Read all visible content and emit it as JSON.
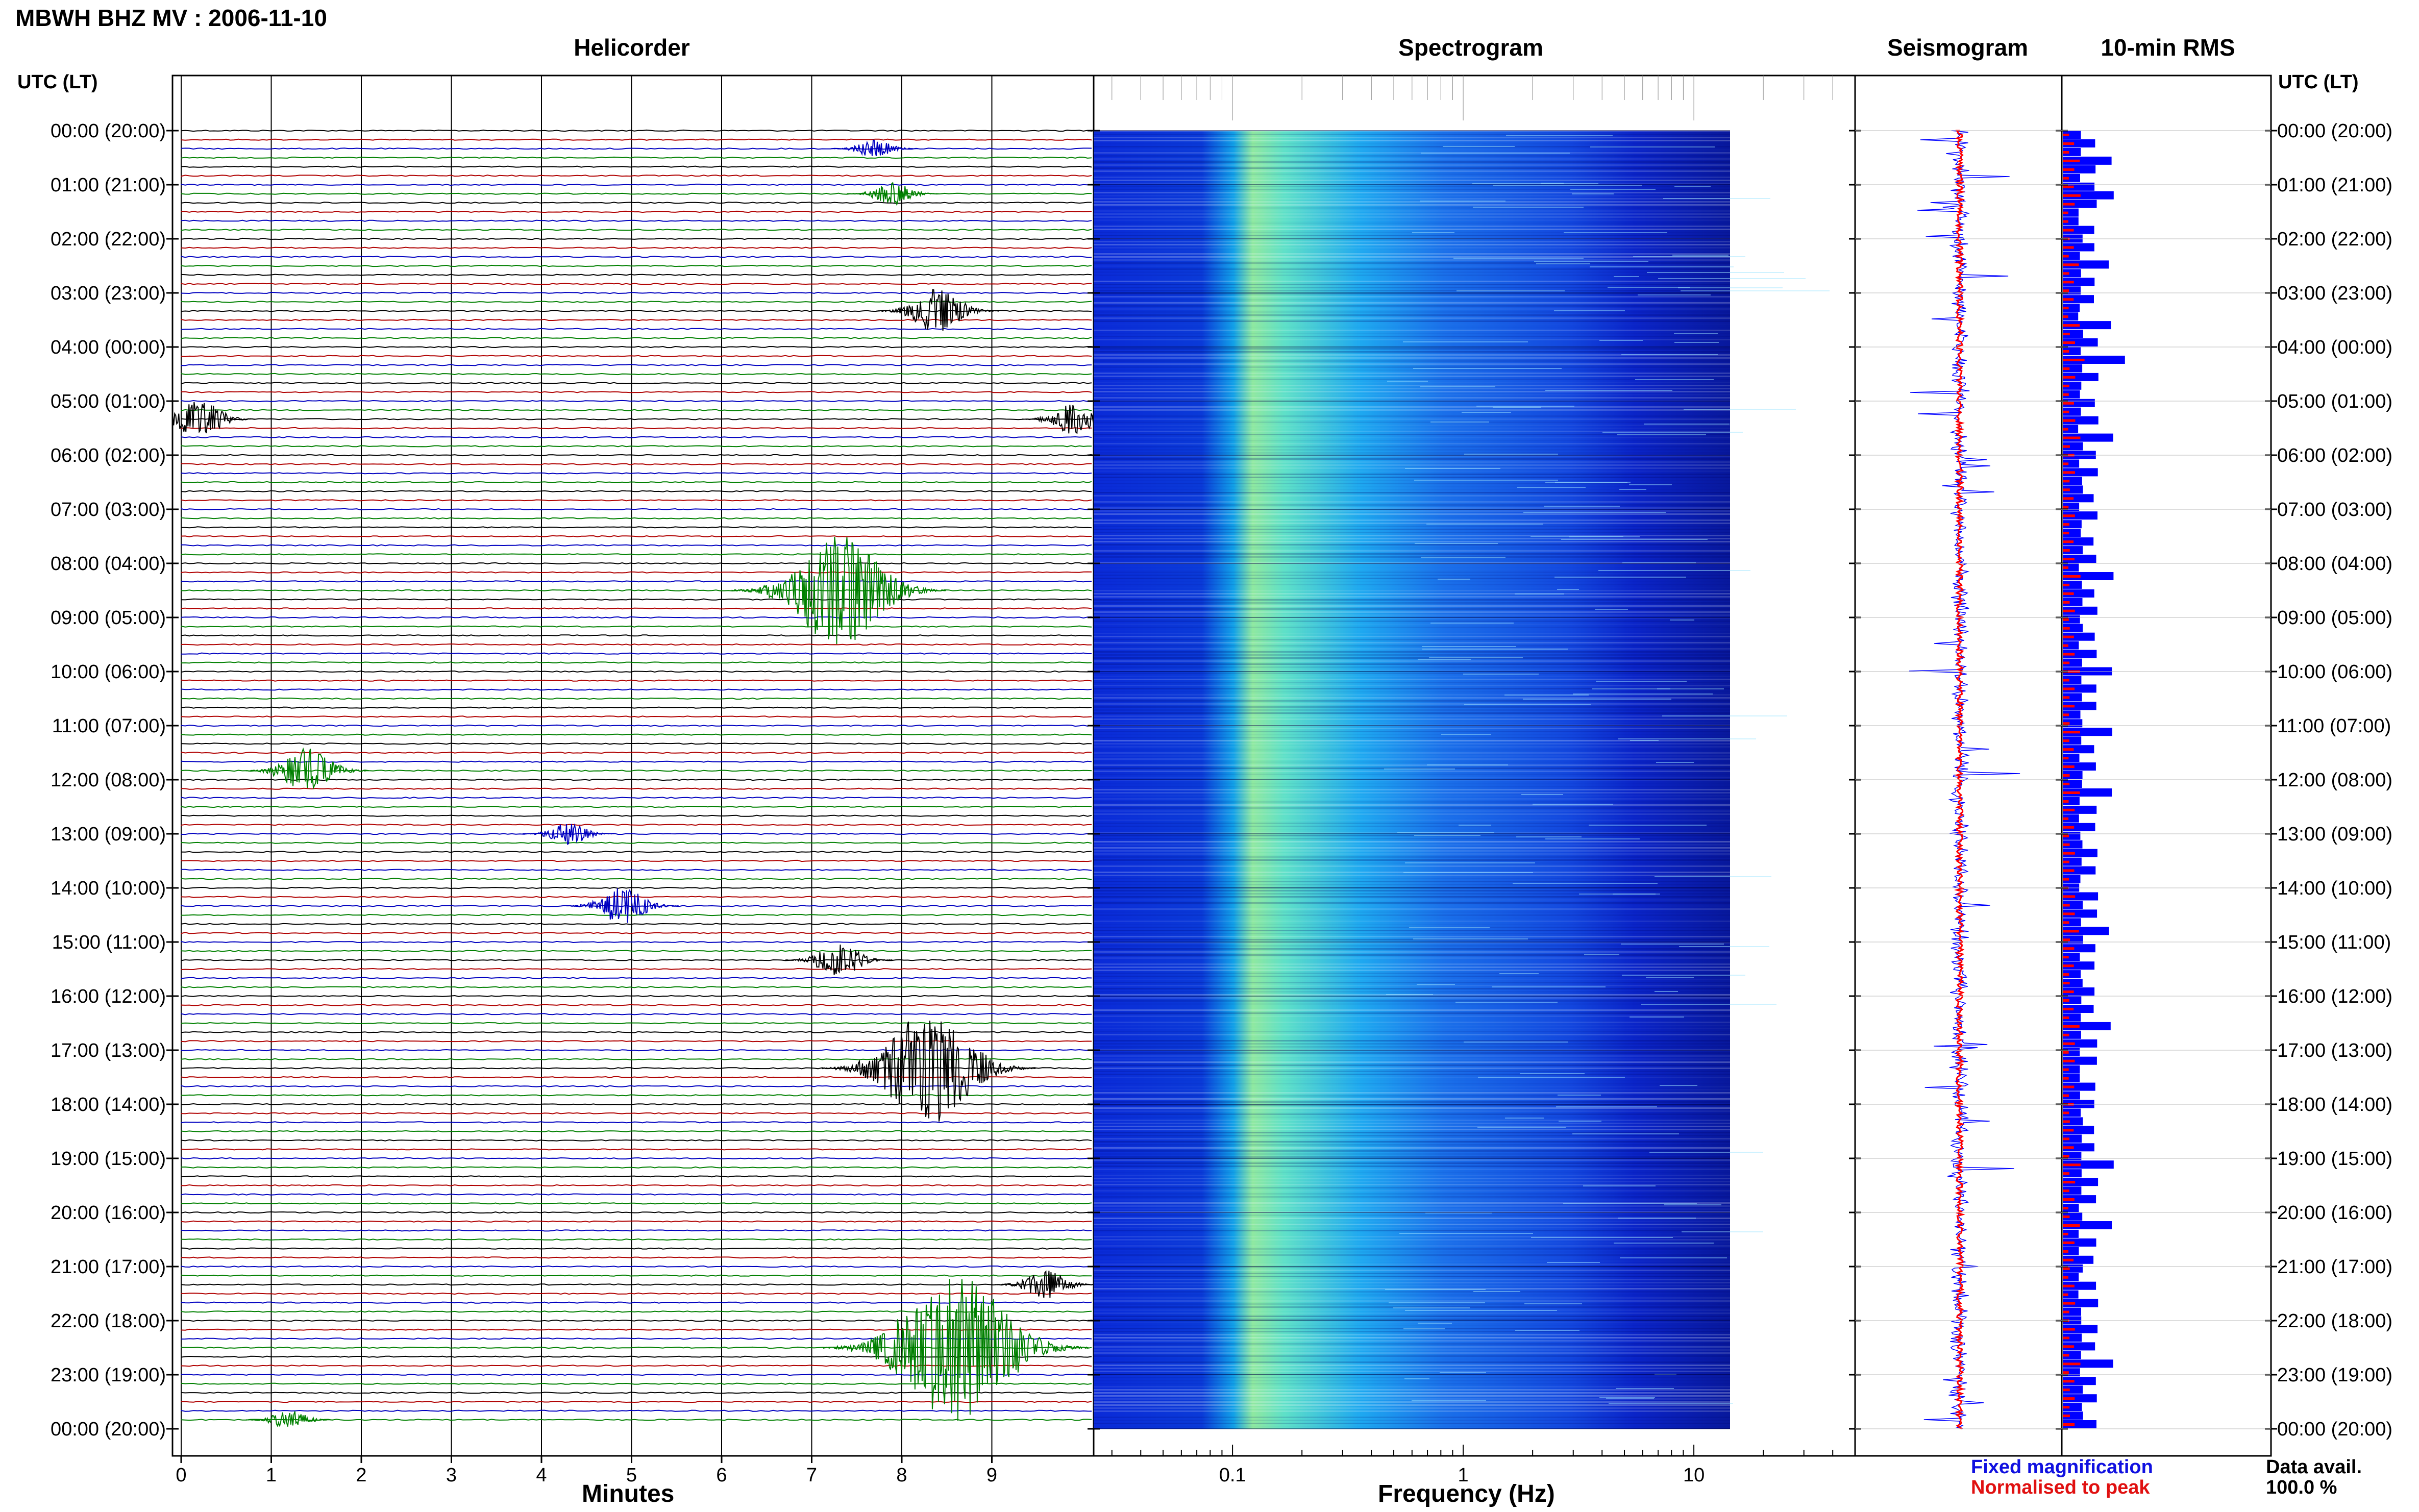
{
  "header": {
    "title": "MBWH BHZ MV : 2006-11-10",
    "left_axis_heading": "UTC (LT)",
    "right_axis_heading": "UTC (LT)"
  },
  "panels": {
    "helicorder": "Helicorder",
    "spectrogram": "Spectrogram",
    "seismogram": "Seismogram",
    "rms": "10-min RMS"
  },
  "time_labels": [
    "00:00 (20:00)",
    "01:00 (21:00)",
    "02:00 (22:00)",
    "03:00 (23:00)",
    "04:00 (00:00)",
    "05:00 (01:00)",
    "06:00 (02:00)",
    "07:00 (03:00)",
    "08:00 (04:00)",
    "09:00 (05:00)",
    "10:00 (06:00)",
    "11:00 (07:00)",
    "12:00 (08:00)",
    "13:00 (09:00)",
    "14:00 (10:00)",
    "15:00 (11:00)",
    "16:00 (12:00)",
    "17:00 (13:00)",
    "18:00 (14:00)",
    "19:00 (15:00)",
    "20:00 (16:00)",
    "21:00 (17:00)",
    "22:00 (18:00)",
    "23:00 (19:00)",
    "00:00 (20:00)"
  ],
  "legend": {
    "fixed": "Fixed magnification",
    "normalised": "Normalised to peak"
  },
  "data_availability": {
    "label": "Data avail.",
    "value": "100.0 %"
  },
  "colors": {
    "trace_colors": [
      "#000000",
      "#b00000",
      "#0000c0",
      "#008000"
    ],
    "fixed_magnification": "#0000ff",
    "normalised_to_peak": "#ff0000"
  },
  "chart_data": [
    {
      "type": "line",
      "title": "Helicorder",
      "xlabel": "Minutes",
      "x_ticks": [
        "0",
        "1",
        "2",
        "3",
        "4",
        "5",
        "6",
        "7",
        "8",
        "9"
      ],
      "xlim": [
        0,
        10
      ],
      "rows_per_hour": 6,
      "events": [
        {
          "hour": 0.3,
          "minute": 7.7,
          "amplitude": 0.5
        },
        {
          "hour": 1.2,
          "minute": 7.9,
          "amplitude": 0.6
        },
        {
          "hour": 3.3,
          "minute": 8.4,
          "amplitude": 1.2
        },
        {
          "hour": 5.4,
          "minute": 0.2,
          "amplitude": 1.0
        },
        {
          "hour": 5.3,
          "minute": 9.9,
          "amplitude": 0.8
        },
        {
          "hour": 8.5,
          "minute": 7.3,
          "amplitude": 3.0
        },
        {
          "hour": 11.8,
          "minute": 1.4,
          "amplitude": 1.2
        },
        {
          "hour": 13.0,
          "minute": 4.3,
          "amplitude": 0.6
        },
        {
          "hour": 14.3,
          "minute": 4.9,
          "amplitude": 1.0
        },
        {
          "hour": 15.3,
          "minute": 7.3,
          "amplitude": 0.9
        },
        {
          "hour": 17.3,
          "minute": 8.3,
          "amplitude": 3.0
        },
        {
          "hour": 21.3,
          "minute": 9.6,
          "amplitude": 0.8
        },
        {
          "hour": 22.5,
          "minute": 8.6,
          "amplitude": 4.0
        },
        {
          "hour": 23.8,
          "minute": 1.2,
          "amplitude": 0.5
        }
      ]
    },
    {
      "type": "heatmap",
      "title": "Spectrogram",
      "xlabel": "Frequency (Hz)",
      "x_scale": "log",
      "xlim": [
        0.025,
        50
      ],
      "x_ticks": [
        "0.1",
        "1",
        "10"
      ]
    },
    {
      "type": "line",
      "title": "Seismogram"
    },
    {
      "type": "bar",
      "title": "10-min RMS",
      "bins_per_hour": 6,
      "fixed_magnification": [
        1,
        2,
        1,
        3,
        2,
        1,
        2,
        3,
        2,
        1,
        1,
        2,
        1,
        2,
        1,
        3,
        1,
        2,
        1,
        2,
        1,
        1,
        3,
        1,
        2,
        1,
        4,
        1,
        2,
        1,
        1,
        2,
        1,
        2,
        1,
        3,
        1,
        2,
        1,
        2,
        1,
        1,
        2,
        1,
        2,
        1,
        1,
        2,
        1,
        2,
        1,
        3,
        1,
        2,
        1,
        2,
        1,
        1,
        2,
        1,
        2,
        1,
        3,
        1,
        2,
        1,
        2,
        1,
        1,
        3,
        1,
        2,
        1,
        2,
        1,
        1,
        3,
        1,
        2,
        1,
        2,
        1,
        1,
        2,
        1,
        2,
        1,
        1,
        2,
        1,
        2,
        1,
        3,
        1,
        2,
        1,
        2,
        1,
        1,
        2,
        1,
        2,
        1,
        3,
        1,
        2,
        1,
        2,
        1,
        1,
        2,
        1,
        2,
        1,
        1,
        2,
        1,
        2,
        1,
        3,
        1,
        2,
        1,
        2,
        1,
        1,
        3,
        1,
        2,
        1,
        2,
        1,
        1,
        2,
        1,
        2,
        1,
        1,
        2,
        1,
        2,
        1,
        3,
        1,
        2,
        1,
        2,
        1,
        1,
        2
      ],
      "normalised_to_peak": [
        0.3,
        0.5,
        0.3,
        0.6,
        0.5,
        0.3
      ]
    }
  ]
}
